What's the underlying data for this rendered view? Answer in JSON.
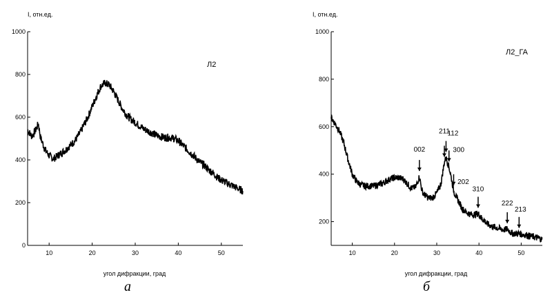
{
  "chart_data": [
    {
      "type": "line",
      "panel_caption": "а",
      "title": "Л2",
      "ylabel": "I, отн.ед.",
      "xlabel": "угол дифракции, град",
      "xlim": [
        5,
        55
      ],
      "ylim": [
        0,
        1000
      ],
      "x_ticks": [
        "10",
        "20",
        "30",
        "40",
        "50"
      ],
      "y_ticks": [
        "0",
        "200",
        "400",
        "600",
        "800",
        "1000"
      ],
      "series": [
        {
          "x": [
            5,
            6,
            7,
            7.5,
            8,
            9,
            10,
            11,
            12,
            13,
            14,
            15,
            16,
            17,
            18,
            19,
            20,
            21,
            22,
            23,
            24,
            25,
            26,
            27,
            28,
            29,
            30,
            31,
            32,
            33,
            34,
            35,
            36,
            37,
            38,
            39,
            40,
            41,
            42,
            43,
            44,
            45,
            46,
            47,
            48,
            49,
            50,
            51,
            52,
            53,
            54,
            55
          ],
          "values": [
            540,
            510,
            545,
            570,
            505,
            450,
            420,
            405,
            420,
            435,
            450,
            470,
            490,
            520,
            560,
            600,
            650,
            700,
            745,
            760,
            750,
            720,
            680,
            640,
            610,
            590,
            575,
            560,
            545,
            535,
            525,
            515,
            508,
            505,
            505,
            500,
            490,
            470,
            450,
            430,
            410,
            390,
            375,
            355,
            340,
            320,
            305,
            295,
            285,
            275,
            265,
            255
          ]
        }
      ]
    },
    {
      "type": "line",
      "panel_caption": "б",
      "title": "Л2_ГА",
      "ylabel": "I, отн.ед.",
      "xlabel": "угол дифракции, град",
      "xlim": [
        5,
        55
      ],
      "ylim": [
        100,
        1000
      ],
      "x_ticks": [
        "10",
        "20",
        "30",
        "40",
        "50"
      ],
      "y_ticks": [
        "200",
        "400",
        "600",
        "800",
        "1000"
      ],
      "series": [
        {
          "x": [
            5,
            6,
            7,
            8,
            9,
            10,
            11,
            12,
            13,
            14,
            15,
            16,
            17,
            18,
            19,
            20,
            21,
            22,
            23,
            24,
            25,
            25.9,
            26.5,
            27,
            28,
            29,
            30,
            31,
            31.8,
            32.2,
            32.9,
            33.5,
            34,
            34.7,
            35.5,
            36,
            37,
            38,
            39,
            39.8,
            40.6,
            41.5,
            42,
            43,
            44,
            45,
            46,
            46.7,
            47.5,
            48,
            49,
            49.5,
            50.5,
            51,
            52,
            53,
            54,
            55
          ],
          "values": [
            640,
            610,
            580,
            530,
            460,
            400,
            370,
            355,
            350,
            350,
            350,
            355,
            360,
            370,
            380,
            385,
            385,
            380,
            360,
            340,
            345,
            390,
            330,
            315,
            300,
            300,
            320,
            360,
            450,
            470,
            430,
            380,
            330,
            300,
            275,
            255,
            240,
            230,
            230,
            235,
            215,
            200,
            190,
            180,
            175,
            170,
            165,
            170,
            155,
            150,
            150,
            150,
            145,
            145,
            140,
            135,
            130,
            125
          ]
        }
      ],
      "peaks": [
        {
          "label": "002",
          "x": 25.9
        },
        {
          "label": "211",
          "x": 31.8
        },
        {
          "label": "112",
          "x": 32.2
        },
        {
          "label": "300",
          "x": 32.9
        },
        {
          "label": "202",
          "x": 34.0
        },
        {
          "label": "310",
          "x": 39.8
        },
        {
          "label": "222",
          "x": 46.7
        },
        {
          "label": "213",
          "x": 49.5
        }
      ]
    }
  ]
}
